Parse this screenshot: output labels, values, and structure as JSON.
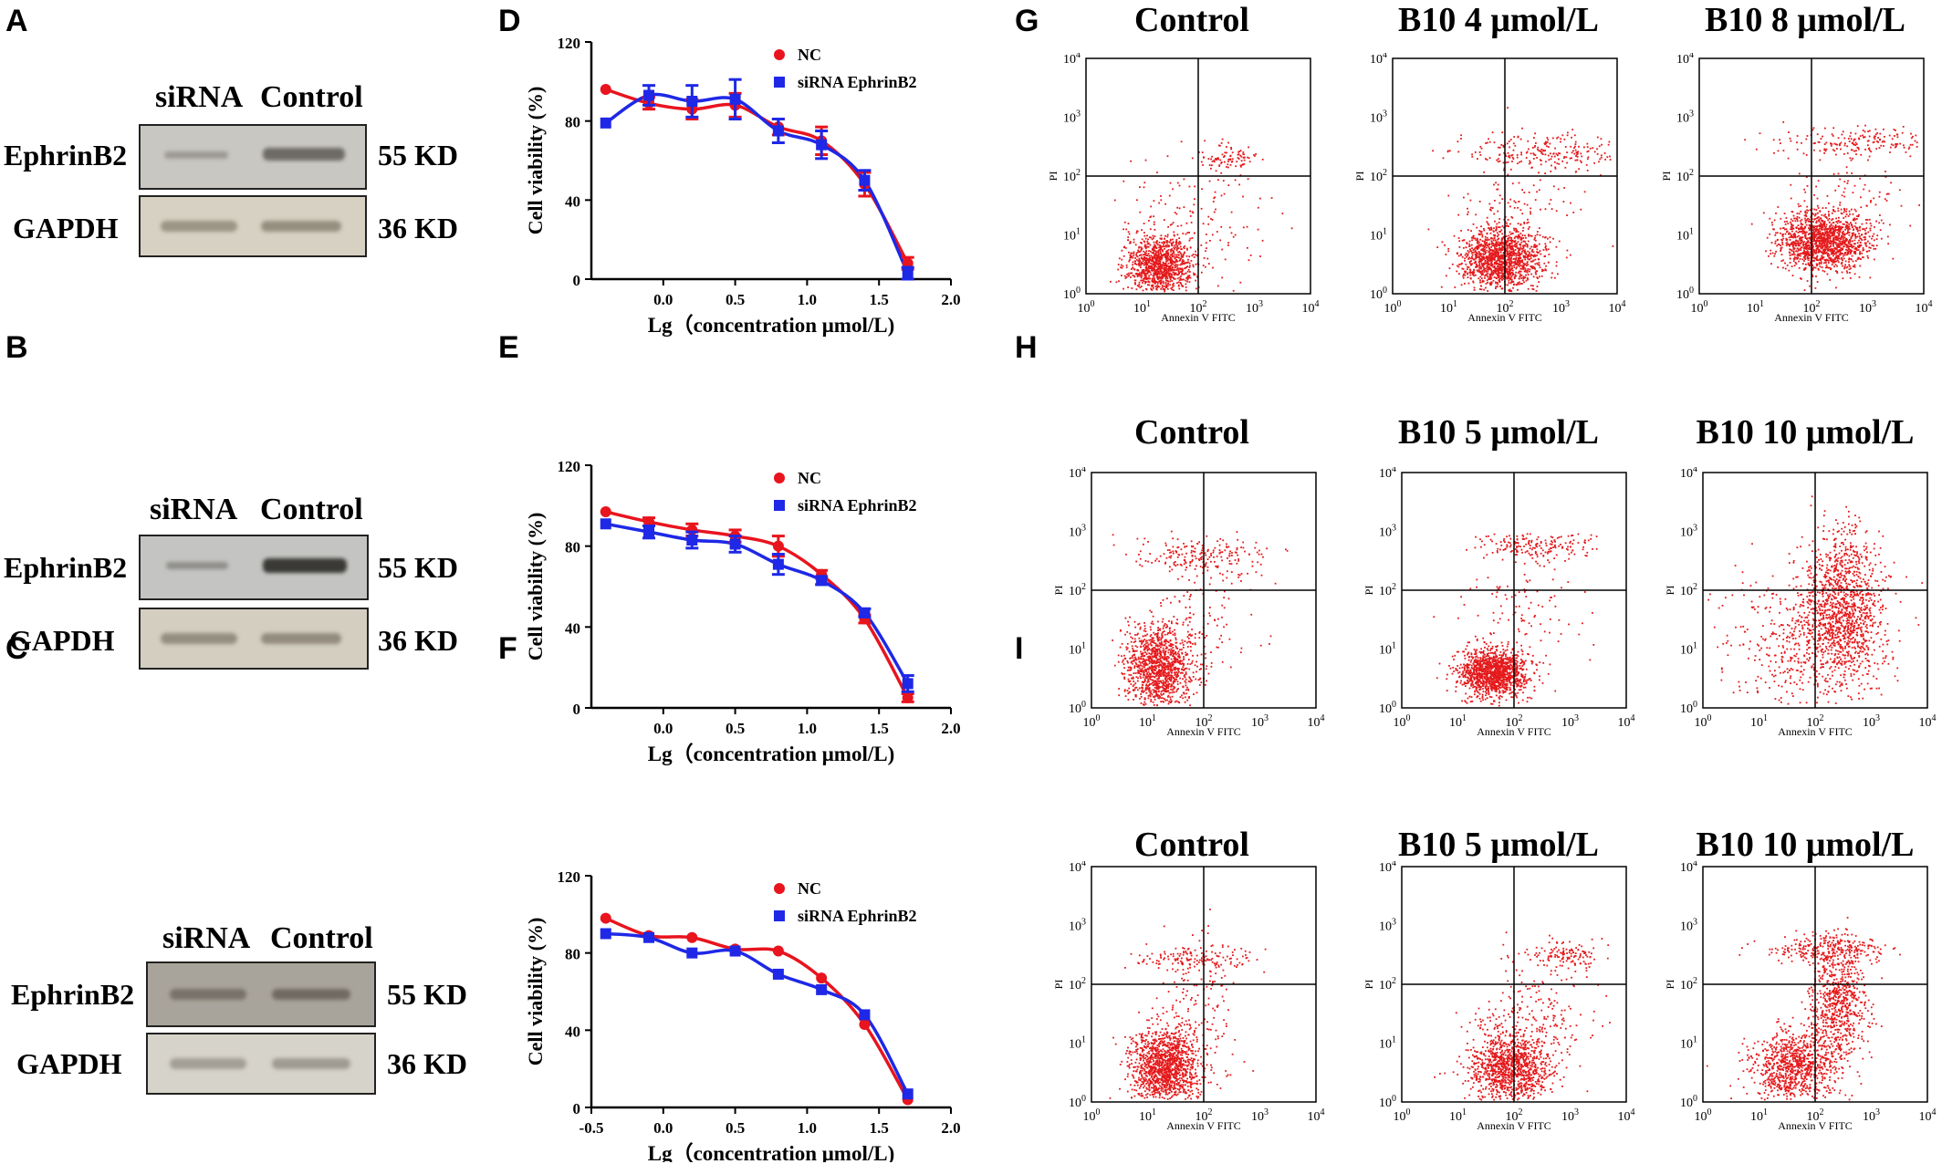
{
  "panel_labels": {
    "A": "A",
    "B": "B",
    "C": "C",
    "D": "D",
    "E": "E",
    "F": "F",
    "G": "G",
    "H": "H",
    "I": "I"
  },
  "western_blots": [
    {
      "panel": "A",
      "header_siRNA": "siRNA",
      "header_control": "Control",
      "row1": "EphrinB2",
      "row2": "GAPDH",
      "kd1": "55 KD",
      "kd2": "36 KD"
    },
    {
      "panel": "B",
      "header_siRNA": "siRNA",
      "header_control": "Control",
      "row1": "EphrinB2",
      "row2": "GAPDH",
      "kd1": "55 KD",
      "kd2": "36 KD"
    },
    {
      "panel": "C",
      "header_siRNA": "siRNA",
      "header_control": "Control",
      "row1": "EphrinB2",
      "row2": "GAPDH",
      "kd1": "55 KD",
      "kd2": "36 KD"
    }
  ],
  "chart_data": [
    {
      "panel": "D",
      "type": "scatter",
      "xlabel": "Lg（concentration μmol/L)",
      "ylabel": "Cell viability (%)",
      "xlim": [
        -0.5,
        2.0
      ],
      "ylim": [
        0,
        120
      ],
      "xticks": [
        "0.0",
        "0.5",
        "1.0",
        "1.5",
        "2.0"
      ],
      "yticks": [
        "0",
        "40",
        "80",
        "120"
      ],
      "x": [
        -0.4,
        -0.1,
        0.2,
        0.5,
        0.8,
        1.1,
        1.4,
        1.7
      ],
      "series": [
        {
          "name": "NC",
          "color": "#e8141e",
          "marker": "circle",
          "values": [
            96,
            89,
            86,
            88,
            77,
            70,
            48,
            8
          ],
          "err": [
            0,
            3,
            5,
            6,
            4,
            7,
            6,
            3
          ]
        },
        {
          "name": "siRNA EphrinB2",
          "color": "#1e28e6",
          "marker": "square",
          "values": [
            79,
            93,
            90,
            91,
            75,
            68,
            50,
            3
          ],
          "err": [
            0,
            5,
            8,
            10,
            6,
            7,
            5,
            3
          ]
        }
      ]
    },
    {
      "panel": "E",
      "type": "scatter",
      "xlabel": "Lg（concentration μmol/L)",
      "ylabel": "Cell viability (%)",
      "xlim": [
        -0.5,
        2.0
      ],
      "ylim": [
        0,
        120
      ],
      "xticks": [
        "0.0",
        "0.5",
        "1.0",
        "1.5",
        "2.0"
      ],
      "yticks": [
        "0",
        "40",
        "80",
        "120"
      ],
      "x": [
        -0.4,
        -0.1,
        0.2,
        0.5,
        0.8,
        1.1,
        1.4,
        1.7
      ],
      "series": [
        {
          "name": "NC",
          "color": "#e8141e",
          "marker": "circle",
          "values": [
            97,
            92,
            88,
            85,
            80,
            66,
            44,
            5
          ],
          "err": [
            0,
            2,
            3,
            3,
            5,
            2,
            2,
            2
          ]
        },
        {
          "name": "siRNA EphrinB2",
          "color": "#1e28e6",
          "marker": "square",
          "values": [
            91,
            87,
            83,
            81,
            71,
            63,
            47,
            12
          ],
          "err": [
            0,
            3,
            4,
            4,
            5,
            2,
            2,
            4
          ]
        }
      ]
    },
    {
      "panel": "F",
      "type": "scatter",
      "xlabel": "Lg（concentration μmol/L)",
      "ylabel": "Cell viability (%)",
      "xlim": [
        -0.5,
        2.0
      ],
      "ylim": [
        0,
        120
      ],
      "xticks": [
        "-0.5",
        "0.0",
        "0.5",
        "1.0",
        "1.5",
        "2.0"
      ],
      "yticks": [
        "0",
        "40",
        "80",
        "120"
      ],
      "x": [
        -0.4,
        -0.1,
        0.2,
        0.5,
        0.8,
        1.1,
        1.4,
        1.7
      ],
      "series": [
        {
          "name": "NC",
          "color": "#e8141e",
          "marker": "circle",
          "values": [
            98,
            89,
            88,
            82,
            81,
            67,
            43,
            4
          ],
          "err": [
            0,
            0,
            0,
            0,
            0,
            0,
            0,
            0
          ]
        },
        {
          "name": "siRNA EphrinB2",
          "color": "#1e28e6",
          "marker": "square",
          "values": [
            90,
            88,
            80,
            81,
            69,
            61,
            48,
            7
          ],
          "err": [
            0,
            0,
            0,
            0,
            0,
            0,
            0,
            0
          ]
        }
      ]
    }
  ],
  "flow_plots": {
    "xlabel": "Annexin V FITC",
    "ylabel": "PI",
    "rows": [
      {
        "panel": "G",
        "titles": [
          "Control",
          "B10 4 μmol/L",
          "B10 8 μmol/L"
        ]
      },
      {
        "panel": "H",
        "titles": [
          "Control",
          "B10 5 μmol/L",
          "B10 10 μmol/L"
        ]
      },
      {
        "panel": "I",
        "titles": [
          "Control",
          "B10 5 μmol/L",
          "B10 10 μmol/L"
        ]
      }
    ],
    "dot_color": "#e41a1c"
  }
}
